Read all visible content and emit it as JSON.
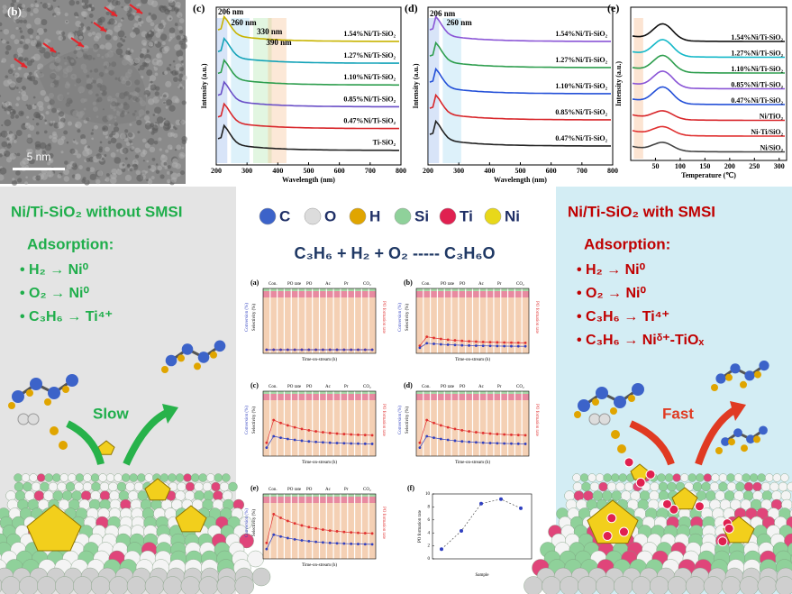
{
  "panel_b": {
    "label": "(b)",
    "scale_bar": "5 nm"
  },
  "panel_c": {
    "label": "(c)",
    "x_label": "Wavelength (nm)",
    "y_label": "Intensity (a.u.)",
    "x_ticks": [
      "200",
      "300",
      "400",
      "500",
      "600",
      "700",
      "800"
    ],
    "annotations": [
      "206 nm",
      "260 nm",
      "330 nm",
      "390 nm"
    ],
    "curves": [
      "1.54%Ni/Ti-SiO₂",
      "1.27%Ni/Ti-SiO₂",
      "1.10%Ni/Ti-SiO₂",
      "0.85%Ni/Ti-SiO₂",
      "0.47%Ni/Ti-SiO₂",
      "Ti-SiO₂"
    ]
  },
  "panel_d": {
    "label": "(d)",
    "x_label": "Wavelength (nm)",
    "y_label": "Intensity (a.u.)",
    "x_ticks": [
      "200",
      "300",
      "400",
      "500",
      "600",
      "700",
      "800"
    ],
    "annotations": [
      "206 nm",
      "260 nm"
    ],
    "curves": [
      "1.54%Ni/Ti-SiO₂",
      "1.27%Ni/Ti-SiO₂",
      "1.10%Ni/Ti-SiO₂",
      "0.85%Ni/Ti-SiO₂",
      "0.47%Ni/Ti-SiO₂"
    ]
  },
  "panel_e": {
    "label": "(e)",
    "x_label": "Temperature (℃)",
    "y_label": "Intensity (a.u.)",
    "x_ticks": [
      "50",
      "100",
      "150",
      "200",
      "250",
      "300"
    ],
    "curves": [
      "1.54%Ni/Ti-SiO₂",
      "1.27%Ni/Ti-SiO₂",
      "1.10%Ni/Ti-SiO₂",
      "0.85%Ni/Ti-SiO₂",
      "0.47%Ni/Ti-SiO₂",
      "Ni/TiO₂",
      "Ni-Ti/SiO₂",
      "Ni/SiO₂"
    ]
  },
  "left": {
    "title": "Ni/Ti-SiO₂ without SMSI",
    "subtitle": "Adsorption:",
    "items": [
      "• H₂ → Ni⁰",
      "• O₂ → Ni⁰",
      "• C₃H₆ → Ti⁴⁺"
    ],
    "arrow_label": "Slow"
  },
  "elements": [
    "C",
    "O",
    "H",
    "Si",
    "Ti",
    "Ni"
  ],
  "equation": "C₃H₆ + H₂ + O₂ ----- C₃H₆O",
  "activity": {
    "panels": [
      "(a)",
      "(b)",
      "(c)",
      "(d)",
      "(e)"
    ],
    "legend": [
      "Con.",
      "PO rate",
      "PO",
      "Ac",
      "Pr",
      "CO₂"
    ],
    "x_label": "Time-on-stream (h)",
    "y_label": "Conversion (%)",
    "y_label_2": "Selectivity (%)",
    "y2_label": "PO formation rate"
  },
  "panel_f": {
    "label": "(f)",
    "x_label": "Sample",
    "y_label": "PO formation rate",
    "values": [
      1.5,
      4.3,
      8.5,
      9.2,
      7.8
    ],
    "ylim": [
      0,
      10
    ],
    "yticks": [
      0,
      2,
      4,
      6,
      8,
      10
    ]
  },
  "right": {
    "title": "Ni/Ti-SiO₂ with SMSI",
    "subtitle": "Adsorption:",
    "items": [
      "• H₂ → Ni⁰",
      "• O₂ → Ni⁰",
      "• C₃H₆ → Ti⁴⁺",
      "• C₃H₆ → Niᵟ⁺-TiOₓ"
    ],
    "arrow_label": "Fast"
  }
}
